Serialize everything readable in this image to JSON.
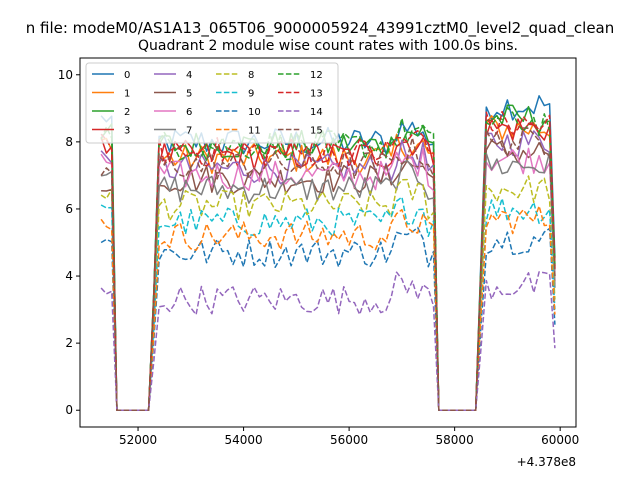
{
  "chart_data": {
    "type": "line",
    "suptitle": "n file: modeM0/AS1A13_065T06_9000005924_43991cztM0_level2_quad_clean",
    "title": "Quadrant 2 module wise count rates with 100.0s bins.",
    "xlabel": "",
    "ylabel": "",
    "x_offset_label": "+4.378e8",
    "xlim": [
      50900,
      60300
    ],
    "ylim": [
      -0.5,
      10.5
    ],
    "xticks": [
      52000,
      54000,
      56000,
      58000,
      60000
    ],
    "xtick_labels": [
      "52000",
      "54000",
      "56000",
      "58000",
      "60000"
    ],
    "yticks": [
      0,
      2,
      4,
      6,
      8,
      10
    ],
    "ytick_labels": [
      "0",
      "2",
      "4",
      "6",
      "8",
      "10"
    ],
    "grid": false,
    "legend_position": "top-left",
    "legend_columns": 4,
    "segments": [
      {
        "x_start": 51300,
        "x_end": 51500
      },
      {
        "x_start": 52300,
        "x_end": 57600
      },
      {
        "x_start": 58500,
        "x_end": 59900
      }
    ],
    "gaps": [
      {
        "x_start": 51600,
        "x_end": 52200
      },
      {
        "x_start": 57700,
        "x_end": 58400
      }
    ],
    "series": [
      {
        "name": "0",
        "color": "#1f77b4",
        "dashed": false,
        "level": 8.0,
        "seg1": 8.7,
        "seg3": 9.1
      },
      {
        "name": "1",
        "color": "#ff7f0e",
        "dashed": false,
        "level": 7.5,
        "seg1": 8.0,
        "seg3": 8.4
      },
      {
        "name": "2",
        "color": "#2ca02c",
        "dashed": false,
        "level": 7.9,
        "seg1": 8.3,
        "seg3": 8.7
      },
      {
        "name": "3",
        "color": "#d62728",
        "dashed": false,
        "level": 7.6,
        "seg1": 7.9,
        "seg3": 8.4
      },
      {
        "name": "4",
        "color": "#9467bd",
        "dashed": false,
        "level": 7.2,
        "seg1": 7.6,
        "seg3": 8.0
      },
      {
        "name": "5",
        "color": "#8c564b",
        "dashed": false,
        "level": 6.9,
        "seg1": 6.5,
        "seg3": 7.7
      },
      {
        "name": "6",
        "color": "#e377c2",
        "dashed": false,
        "level": 7.0,
        "seg1": 7.4,
        "seg3": 7.5
      },
      {
        "name": "7",
        "color": "#7f7f7f",
        "dashed": false,
        "level": 6.6,
        "seg1": 7.2,
        "seg3": 7.3
      },
      {
        "name": "8",
        "color": "#bcbd22",
        "dashed": true,
        "level": 6.1,
        "seg1": 6.5,
        "seg3": 6.6
      },
      {
        "name": "9",
        "color": "#17becf",
        "dashed": true,
        "level": 5.6,
        "seg1": 5.9,
        "seg3": 6.0
      },
      {
        "name": "10",
        "color": "#1f77b4",
        "dashed": true,
        "level": 4.7,
        "seg1": 5.0,
        "seg3": 5.1
      },
      {
        "name": "11",
        "color": "#ff7f0e",
        "dashed": true,
        "level": 5.2,
        "seg1": 5.6,
        "seg3": 5.7
      },
      {
        "name": "12",
        "color": "#2ca02c",
        "dashed": true,
        "level": 7.9,
        "seg1": 8.3,
        "seg3": 8.6
      },
      {
        "name": "13",
        "color": "#d62728",
        "dashed": true,
        "level": 7.7,
        "seg1": 8.0,
        "seg3": 8.5
      },
      {
        "name": "14",
        "color": "#9467bd",
        "dashed": true,
        "level": 3.3,
        "seg1": 3.5,
        "seg3": 3.7
      },
      {
        "name": "15",
        "color": "#8c564b",
        "dashed": true,
        "level": 7.3,
        "seg1": 7.1,
        "seg3": 8.0
      }
    ]
  }
}
